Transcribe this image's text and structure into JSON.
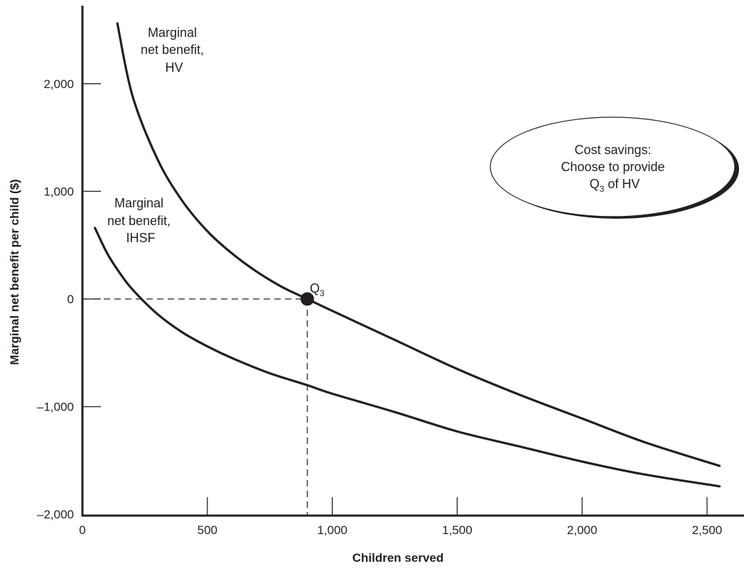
{
  "chart_data": {
    "type": "line",
    "xlabel": "Children served",
    "ylabel": "Marginal net benefit per child ($)",
    "xlim": [
      0,
      2550
    ],
    "ylim": [
      -2000,
      2000
    ],
    "x_ticks": [
      0,
      500,
      1000,
      1500,
      2000,
      2500
    ],
    "x_tick_labels": [
      "0",
      "500",
      "1,000",
      "1,500",
      "2,000",
      "2,500"
    ],
    "y_ticks": [
      -2000,
      -1000,
      0,
      1000,
      2000
    ],
    "y_tick_labels": [
      "–2,000",
      "–1,000",
      "0",
      "1,000",
      "2,000"
    ],
    "grid": false,
    "series": [
      {
        "name": "Marginal net benefit, HV",
        "label_lines": [
          "Marginal",
          "net benefit,",
          "HV"
        ],
        "x": [
          140,
          200,
          300,
          400,
          500,
          600,
          700,
          800,
          900,
          1000,
          1250,
          1500,
          1750,
          2000,
          2250,
          2550
        ],
        "y": [
          2560,
          1890,
          1300,
          910,
          630,
          420,
          250,
          110,
          0,
          -110,
          -380,
          -650,
          -890,
          -1110,
          -1330,
          -1550
        ]
      },
      {
        "name": "Marginal net benefit, IHSF",
        "label_lines": [
          "Marginal",
          "net benefit,",
          "IHSF"
        ],
        "x": [
          50,
          100,
          150,
          200,
          300,
          400,
          500,
          600,
          750,
          900,
          1000,
          1250,
          1500,
          1750,
          2000,
          2250,
          2550
        ],
        "y": [
          660,
          420,
          240,
          90,
          -140,
          -310,
          -440,
          -550,
          -690,
          -800,
          -880,
          -1050,
          -1230,
          -1370,
          -1510,
          -1630,
          -1740
        ]
      }
    ],
    "marked_point": {
      "label": "Q",
      "subscript": "3",
      "x": 900,
      "y": 0
    },
    "callout": {
      "line1": "Cost savings:",
      "line2": "Choose to provide",
      "line3_pre": "Q",
      "line3_sub": "3",
      "line3_post": " of HV"
    }
  }
}
